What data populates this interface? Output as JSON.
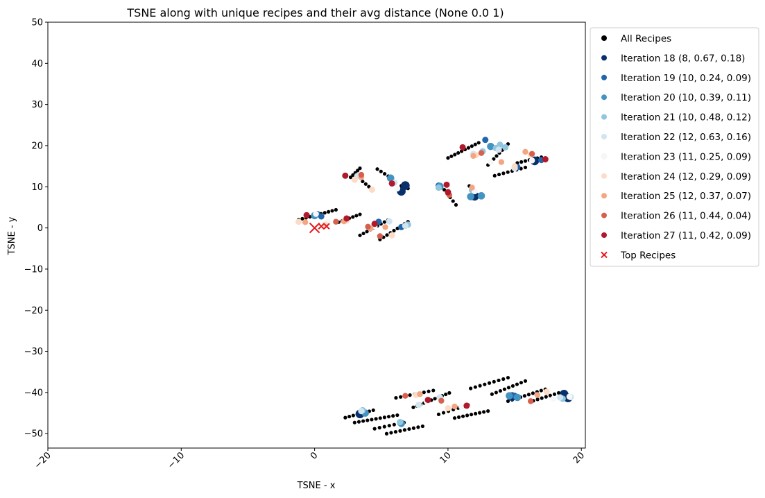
{
  "chart_data": {
    "type": "scatter",
    "title": "TSNE along with unique recipes and their avg distance (None 0.0 1)",
    "xlabel": "TSNE - x",
    "ylabel": "TSNE - y",
    "xlim": [
      -20,
      20.3
    ],
    "ylim": [
      -53.5,
      50
    ],
    "xticks": [
      -20,
      -10,
      0,
      10,
      20
    ],
    "yticks": [
      -50,
      -40,
      -30,
      -20,
      -10,
      0,
      10,
      20,
      30,
      40,
      50
    ],
    "xtick_labels": [
      "−20",
      "−10",
      "0",
      "10",
      "20"
    ],
    "ytick_labels": [
      "−50",
      "−40",
      "−30",
      "−20",
      "−10",
      "0",
      "10",
      "20",
      "30",
      "40",
      "50"
    ],
    "xtick_rotation": 45,
    "grid": false,
    "legend_position": "outside-top-right",
    "series": [
      {
        "name": "All Recipes",
        "color": "#000000",
        "marker": "dot",
        "segments": [
          {
            "from": [
              -1.2,
              2.0
            ],
            "to": [
              1.6,
              4.4
            ],
            "n": 11
          },
          {
            "from": [
              2.7,
              12.3
            ],
            "to": [
              3.4,
              14.5
            ],
            "n": 5
          },
          {
            "from": [
              3.6,
              11.3
            ],
            "to": [
              4.3,
              9.4
            ],
            "n": 4
          },
          {
            "from": [
              4.7,
              14.3
            ],
            "to": [
              5.8,
              12.0
            ],
            "n": 5
          },
          {
            "from": [
              1.8,
              1.4
            ],
            "to": [
              3.4,
              3.3
            ],
            "n": 7
          },
          {
            "from": [
              3.4,
              -1.8
            ],
            "to": [
              5.5,
              1.9
            ],
            "n": 9
          },
          {
            "from": [
              4.9,
              -2.8
            ],
            "to": [
              7.0,
              1.5
            ],
            "n": 9
          },
          {
            "from": [
              6.0,
              10.9
            ],
            "to": [
              7.0,
              9.6
            ],
            "n": 3
          },
          {
            "from": [
              9.5,
              10.2
            ],
            "to": [
              10.6,
              5.6
            ],
            "n": 6
          },
          {
            "from": [
              10.0,
              17.0
            ],
            "to": [
              12.3,
              20.7
            ],
            "n": 10
          },
          {
            "from": [
              11.6,
              10.2
            ],
            "to": [
              12.3,
              8.0
            ],
            "n": 4
          },
          {
            "from": [
              13.0,
              15.3
            ],
            "to": [
              14.5,
              20.4
            ],
            "n": 8
          },
          {
            "from": [
              13.5,
              12.7
            ],
            "to": [
              15.8,
              14.7
            ],
            "n": 8
          },
          {
            "from": [
              15.2,
              15.8
            ],
            "to": [
              17.0,
              17.2
            ],
            "n": 7
          },
          {
            "from": [
              2.3,
              -46.1
            ],
            "to": [
              4.4,
              -44.3
            ],
            "n": 8
          },
          {
            "from": [
              3.0,
              -47.3
            ],
            "to": [
              6.2,
              -45.5
            ],
            "n": 11
          },
          {
            "from": [
              4.5,
              -48.8
            ],
            "to": [
              6.7,
              -47.3
            ],
            "n": 7
          },
          {
            "from": [
              5.4,
              -50.0
            ],
            "to": [
              8.1,
              -48.2
            ],
            "n": 9
          },
          {
            "from": [
              6.1,
              -41.3
            ],
            "to": [
              8.9,
              -39.5
            ],
            "n": 9
          },
          {
            "from": [
              7.4,
              -43.6
            ],
            "to": [
              10.1,
              -40.1
            ],
            "n": 11
          },
          {
            "from": [
              9.3,
              -45.3
            ],
            "to": [
              11.5,
              -43.0
            ],
            "n": 7
          },
          {
            "from": [
              10.5,
              -46.2
            ],
            "to": [
              13.0,
              -44.5
            ],
            "n": 9
          },
          {
            "from": [
              11.7,
              -39.0
            ],
            "to": [
              14.5,
              -36.4
            ],
            "n": 9
          },
          {
            "from": [
              13.3,
              -40.4
            ],
            "to": [
              15.8,
              -37.2
            ],
            "n": 9
          },
          {
            "from": [
              14.5,
              -42.1
            ],
            "to": [
              17.3,
              -39.2
            ],
            "n": 10
          },
          {
            "from": [
              16.4,
              -42.0
            ],
            "to": [
              18.3,
              -40.1
            ],
            "n": 7
          }
        ]
      },
      {
        "name": "Iteration 18 (8, 0.67, 0.18)",
        "color": "#08306b",
        "points": [
          [
            6.5,
            8.9
          ],
          [
            6.8,
            10.3
          ],
          [
            12.0,
            7.7
          ],
          [
            16.5,
            16.3
          ],
          [
            3.4,
            -45.2
          ],
          [
            14.8,
            -41.0
          ],
          [
            18.7,
            -40.4
          ],
          [
            19.0,
            -41.3
          ]
        ]
      },
      {
        "name": "Iteration 19 (10, 0.24, 0.09)",
        "color": "#2166ac",
        "points": [
          [
            0.2,
            3.4
          ],
          [
            4.8,
            1.5
          ],
          [
            6.5,
            0.2
          ],
          [
            12.8,
            21.4
          ],
          [
            15.2,
            14.8
          ],
          [
            17.0,
            16.5
          ],
          [
            4.5,
            0.8
          ],
          [
            9.3,
            10.3
          ],
          [
            0.5,
            2.8
          ],
          [
            15.0,
            -40.8
          ]
        ]
      },
      {
        "name": "Iteration 20 (10, 0.39, 0.11)",
        "color": "#4393c3",
        "points": [
          [
            5.7,
            12.1
          ],
          [
            9.4,
            10.1
          ],
          [
            11.7,
            7.6
          ],
          [
            12.5,
            7.8
          ],
          [
            13.2,
            19.8
          ],
          [
            0.0,
            3.0
          ],
          [
            3.8,
            -45.0
          ],
          [
            6.5,
            -47.5
          ],
          [
            14.6,
            -40.8
          ],
          [
            15.2,
            -41.2
          ]
        ]
      },
      {
        "name": "Iteration 21 (10, 0.48, 0.12)",
        "color": "#92c5de",
        "points": [
          [
            7.0,
            0.8
          ],
          [
            9.3,
            9.8
          ],
          [
            12.6,
            18.6
          ],
          [
            13.6,
            19.4
          ],
          [
            13.9,
            20.2
          ],
          [
            14.3,
            19.6
          ],
          [
            11.8,
            9.2
          ],
          [
            6.4,
            -47.2
          ],
          [
            3.6,
            -44.3
          ],
          [
            18.6,
            -41.5
          ]
        ]
      },
      {
        "name": "Iteration 22 (12, 0.63, 0.16)",
        "color": "#d1e5f0",
        "points": [
          [
            3.2,
            12.6
          ],
          [
            6.0,
            11.0
          ],
          [
            11.9,
            18.0
          ],
          [
            13.8,
            19.0
          ],
          [
            15.0,
            14.5
          ],
          [
            3.5,
            -44.5
          ],
          [
            7.8,
            -43.0
          ],
          [
            9.4,
            -41.2
          ],
          [
            18.4,
            -41.2
          ],
          [
            19.2,
            -41.1
          ],
          [
            5.6,
            1.6
          ],
          [
            6.8,
            0.5
          ]
        ]
      },
      {
        "name": "Iteration 23 (11, 0.25, 0.09)",
        "color": "#f7f7f7",
        "points": [
          [
            4.5,
            0.4
          ],
          [
            0.1,
            3.4
          ],
          [
            1.0,
            1.5
          ],
          [
            6.2,
            9.6
          ],
          [
            12.0,
            8.9
          ],
          [
            13.2,
            16.0
          ],
          [
            16.3,
            16.4
          ],
          [
            8.4,
            -42.2
          ],
          [
            11.0,
            -43.4
          ],
          [
            17.9,
            -41.5
          ],
          [
            19.1,
            -41.0
          ]
        ]
      },
      {
        "name": "Iteration 24 (12, 0.29, 0.09)",
        "color": "#fddbc7",
        "points": [
          [
            3.0,
            11.7
          ],
          [
            4.3,
            9.3
          ],
          [
            5.8,
            -1.8
          ],
          [
            0.8,
            0.8
          ],
          [
            12.1,
            17.7
          ],
          [
            15.0,
            15.0
          ],
          [
            16.2,
            17.8
          ],
          [
            7.6,
            -40.6
          ],
          [
            10.0,
            -43.8
          ],
          [
            17.4,
            -39.8
          ],
          [
            -1.2,
            1.5
          ],
          [
            2.4,
            1.8
          ]
        ]
      },
      {
        "name": "Iteration 25 (12, 0.37, 0.07)",
        "color": "#f4a582",
        "points": [
          [
            -0.7,
            1.4
          ],
          [
            2.2,
            1.6
          ],
          [
            3.5,
            12.3
          ],
          [
            4.2,
            -0.1
          ],
          [
            11.8,
            9.8
          ],
          [
            14.0,
            16.0
          ],
          [
            15.8,
            18.5
          ],
          [
            11.9,
            17.5
          ],
          [
            7.9,
            -40.4
          ],
          [
            10.5,
            -43.4
          ],
          [
            16.7,
            -40.6
          ],
          [
            5.3,
            0.2
          ]
        ]
      },
      {
        "name": "Iteration 26 (11, 0.44, 0.04)",
        "color": "#d6604d",
        "points": [
          [
            1.6,
            1.5
          ],
          [
            3.5,
            12.9
          ],
          [
            4.9,
            -2.0
          ],
          [
            10.1,
            8.0
          ],
          [
            12.5,
            18.2
          ],
          [
            16.3,
            18.0
          ],
          [
            17.3,
            16.6
          ],
          [
            6.8,
            -40.8
          ],
          [
            9.5,
            -42.0
          ],
          [
            16.2,
            -42.1
          ],
          [
            4.0,
            0.3
          ]
        ]
      },
      {
        "name": "Iteration 27 (11, 0.42, 0.09)",
        "color": "#b2182b",
        "points": [
          [
            -0.6,
            3.1
          ],
          [
            2.3,
            12.7
          ],
          [
            2.4,
            2.3
          ],
          [
            4.5,
            1.0
          ],
          [
            5.8,
            10.8
          ],
          [
            9.9,
            10.5
          ],
          [
            10.0,
            8.7
          ],
          [
            11.1,
            19.6
          ],
          [
            8.5,
            -41.8
          ],
          [
            11.4,
            -43.2
          ],
          [
            17.3,
            16.7
          ]
        ]
      },
      {
        "name": "Top Recipes",
        "color": "#e31a1c",
        "marker": "x",
        "points": [
          [
            0.0,
            0.0
          ],
          [
            0.5,
            0.4
          ],
          [
            0.9,
            0.4
          ]
        ]
      }
    ]
  }
}
